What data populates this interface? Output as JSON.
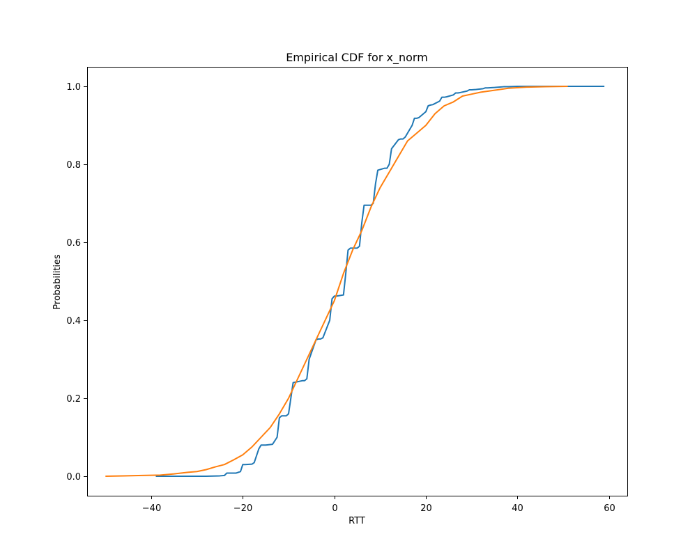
{
  "chart_data": {
    "type": "line",
    "title": "Empirical CDF for x_norm",
    "xlabel": "RTT",
    "ylabel": "Probabilities",
    "xlim": [
      -54,
      64
    ],
    "ylim": [
      -0.05,
      1.05
    ],
    "xticks": [
      -40,
      -20,
      0,
      20,
      40,
      60
    ],
    "yticks": [
      0.0,
      0.2,
      0.4,
      0.6,
      0.8,
      1.0
    ],
    "xtick_labels": [
      "−40",
      "−20",
      "0",
      "20",
      "40",
      "60"
    ],
    "ytick_labels": [
      "0.0",
      "0.2",
      "0.4",
      "0.6",
      "0.8",
      "1.0"
    ],
    "grid": false,
    "legend": "none",
    "series": [
      {
        "color": "#1f77b4",
        "x": [
          -39,
          -28,
          -25,
          -24,
          -23.5,
          -21.5,
          -20.5,
          -20,
          -19.5,
          -18,
          -17.5,
          -16.5,
          -16,
          -15,
          -13.5,
          -12.5,
          -12,
          -11.5,
          -10.5,
          -10,
          -9.5,
          -9,
          -7,
          -6.5,
          -6,
          -5.5,
          -4,
          -3.5,
          -3,
          -2.5,
          -1,
          -0.5,
          0,
          0.5,
          2,
          2.5,
          3,
          3.5,
          5,
          5.5,
          6,
          6.5,
          8,
          8.5,
          9,
          9.5,
          11,
          11.5,
          12,
          12.5,
          14,
          14.5,
          15,
          15.5,
          17,
          17.5,
          18,
          18.5,
          20,
          20.5,
          21,
          21.5,
          23,
          23.5,
          24,
          24.5,
          26,
          26.5,
          27,
          27.5,
          29,
          29.5,
          30,
          31,
          32.5,
          33,
          33.5,
          35,
          36,
          37,
          38,
          40,
          45,
          50,
          59
        ],
        "y": [
          0.0,
          0.0,
          0.001,
          0.002,
          0.008,
          0.008,
          0.012,
          0.03,
          0.03,
          0.031,
          0.035,
          0.07,
          0.08,
          0.08,
          0.082,
          0.1,
          0.15,
          0.155,
          0.155,
          0.16,
          0.2,
          0.24,
          0.245,
          0.245,
          0.25,
          0.3,
          0.35,
          0.352,
          0.352,
          0.355,
          0.4,
          0.455,
          0.462,
          0.462,
          0.465,
          0.52,
          0.58,
          0.585,
          0.585,
          0.59,
          0.65,
          0.695,
          0.695,
          0.7,
          0.75,
          0.785,
          0.79,
          0.79,
          0.8,
          0.84,
          0.863,
          0.865,
          0.865,
          0.87,
          0.9,
          0.918,
          0.918,
          0.92,
          0.935,
          0.95,
          0.952,
          0.953,
          0.962,
          0.972,
          0.972,
          0.973,
          0.978,
          0.983,
          0.983,
          0.984,
          0.988,
          0.991,
          0.991,
          0.992,
          0.994,
          0.996,
          0.996,
          0.997,
          0.998,
          0.999,
          0.999,
          1.0,
          1.0,
          1.0,
          1.0
        ]
      },
      {
        "color": "#ff7f0e",
        "x": [
          -50,
          -46,
          -42,
          -38,
          -35,
          -32,
          -30,
          -28,
          -26,
          -24,
          -22,
          -20,
          -18,
          -16,
          -14,
          -12,
          -10,
          -8,
          -6,
          -4,
          -2,
          0,
          2,
          4,
          6,
          8,
          10,
          12,
          14,
          16,
          18,
          20,
          22,
          24,
          26,
          28,
          30,
          32,
          35,
          38,
          42,
          46,
          51
        ],
        "y": [
          0.0,
          0.001,
          0.002,
          0.003,
          0.006,
          0.01,
          0.012,
          0.017,
          0.024,
          0.03,
          0.042,
          0.055,
          0.075,
          0.1,
          0.125,
          0.16,
          0.2,
          0.25,
          0.3,
          0.35,
          0.4,
          0.45,
          0.52,
          0.58,
          0.63,
          0.69,
          0.74,
          0.78,
          0.82,
          0.86,
          0.88,
          0.9,
          0.93,
          0.95,
          0.96,
          0.975,
          0.98,
          0.985,
          0.99,
          0.995,
          0.998,
          0.999,
          1.0
        ]
      }
    ]
  }
}
